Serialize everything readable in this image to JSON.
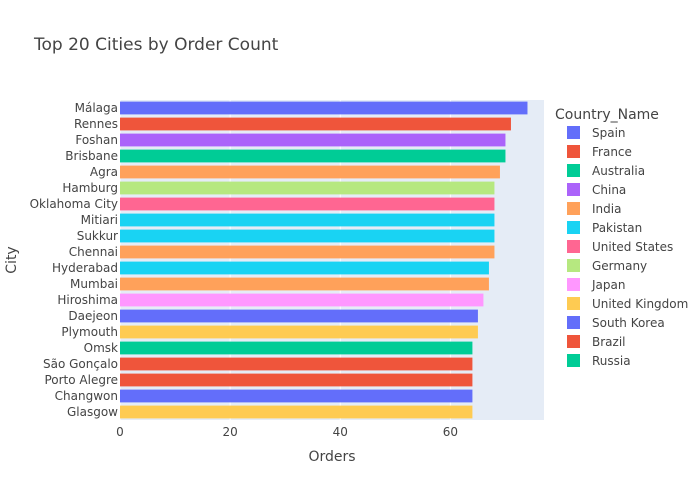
{
  "chart_data": {
    "type": "bar",
    "orientation": "horizontal",
    "title": "Top 20 Cities by Order Count",
    "xlabel": "Orders",
    "ylabel": "City",
    "xlim": [
      0,
      77
    ],
    "x_ticks": [
      0,
      20,
      40,
      60
    ],
    "grid": "vertical gridlines, white on light blue-grey plot background",
    "legend": {
      "title": "Country_Name",
      "placement": "right"
    },
    "series": [
      {
        "name": "Spain",
        "color": "#636efa"
      },
      {
        "name": "France",
        "color": "#EF553B"
      },
      {
        "name": "Australia",
        "color": "#00cc96"
      },
      {
        "name": "China",
        "color": "#ab63fa"
      },
      {
        "name": "India",
        "color": "#FFA15A"
      },
      {
        "name": "Pakistan",
        "color": "#19d3f3"
      },
      {
        "name": "United States",
        "color": "#FF6692"
      },
      {
        "name": "Germany",
        "color": "#B6E880"
      },
      {
        "name": "Japan",
        "color": "#FF97FF"
      },
      {
        "name": "United Kingdom",
        "color": "#FECB52"
      },
      {
        "name": "South Korea",
        "color": "#636efa"
      },
      {
        "name": "Brazil",
        "color": "#EF553B"
      },
      {
        "name": "Russia",
        "color": "#00cc96"
      }
    ],
    "bars": [
      {
        "city": "Málaga",
        "country": "Spain",
        "value": 74
      },
      {
        "city": "Rennes",
        "country": "France",
        "value": 71
      },
      {
        "city": "Foshan",
        "country": "China",
        "value": 70
      },
      {
        "city": "Brisbane",
        "country": "Australia",
        "value": 70
      },
      {
        "city": "Agra",
        "country": "India",
        "value": 69
      },
      {
        "city": "Hamburg",
        "country": "Germany",
        "value": 68
      },
      {
        "city": "Oklahoma City",
        "country": "United States",
        "value": 68
      },
      {
        "city": "Mitiari",
        "country": "Pakistan",
        "value": 68
      },
      {
        "city": "Sukkur",
        "country": "Pakistan",
        "value": 68
      },
      {
        "city": "Chennai",
        "country": "India",
        "value": 68
      },
      {
        "city": "Hyderabad",
        "country": "Pakistan",
        "value": 67
      },
      {
        "city": "Mumbai",
        "country": "India",
        "value": 67
      },
      {
        "city": "Hiroshima",
        "country": "Japan",
        "value": 66
      },
      {
        "city": "Daejeon",
        "country": "South Korea",
        "value": 65
      },
      {
        "city": "Plymouth",
        "country": "United Kingdom",
        "value": 65
      },
      {
        "city": "Omsk",
        "country": "Russia",
        "value": 64
      },
      {
        "city": "São Gonçalo",
        "country": "Brazil",
        "value": 64
      },
      {
        "city": "Porto Alegre",
        "country": "Brazil",
        "value": 64
      },
      {
        "city": "Changwon",
        "country": "South Korea",
        "value": 64
      },
      {
        "city": "Glasgow",
        "country": "United Kingdom",
        "value": 64
      }
    ]
  }
}
